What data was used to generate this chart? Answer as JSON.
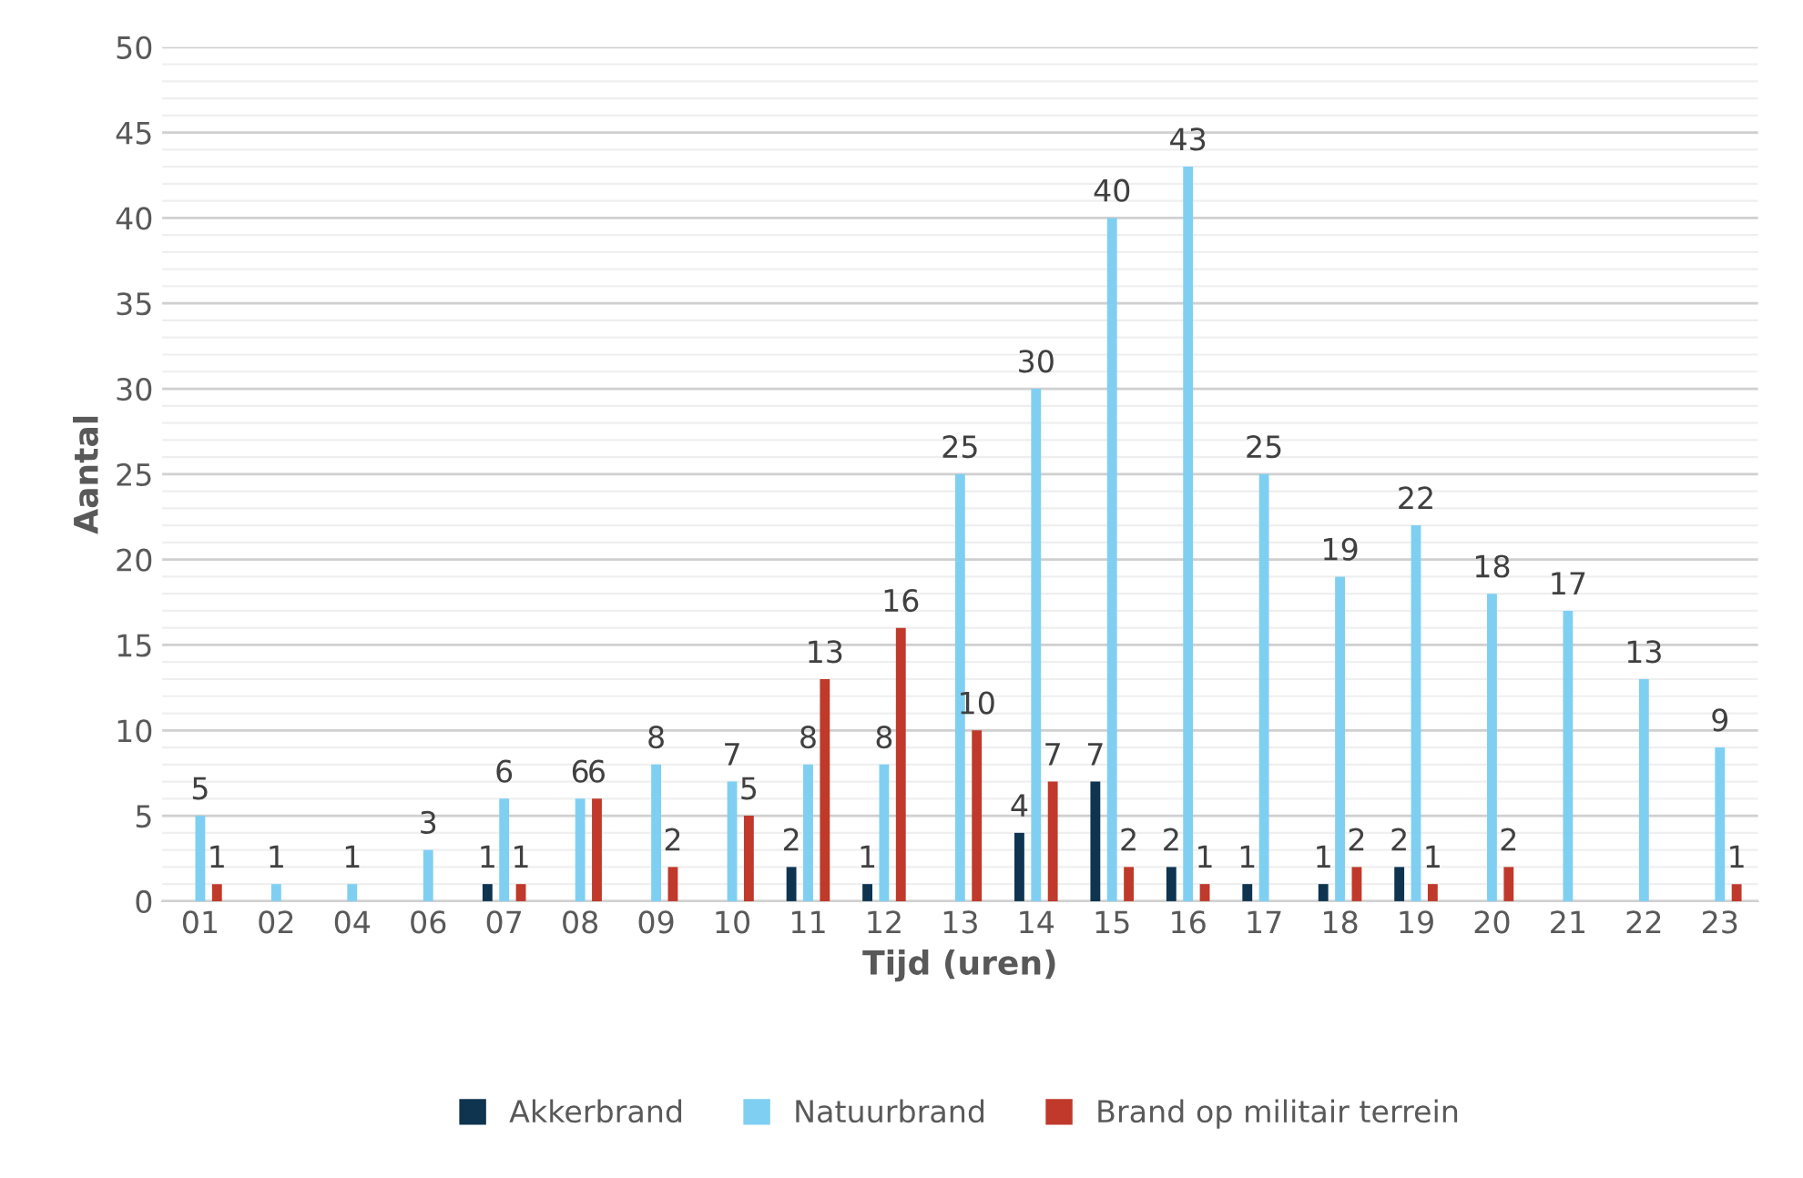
{
  "chart_data": {
    "type": "bar",
    "xlabel": "Tijd (uren)",
    "ylabel": "Aantal",
    "categories": [
      "01",
      "02",
      "04",
      "06",
      "07",
      "08",
      "09",
      "10",
      "11",
      "12",
      "13",
      "14",
      "15",
      "16",
      "17",
      "18",
      "19",
      "20",
      "21",
      "22",
      "23"
    ],
    "series": [
      {
        "name": "Akkerbrand",
        "color": "#0e3450",
        "values": [
          null,
          null,
          null,
          null,
          1,
          null,
          null,
          null,
          2,
          1,
          null,
          4,
          7,
          2,
          1,
          1,
          2,
          null,
          null,
          null,
          null
        ]
      },
      {
        "name": "Natuurbrand",
        "color": "#7fcff2",
        "values": [
          5,
          1,
          1,
          3,
          6,
          6,
          8,
          7,
          8,
          8,
          25,
          30,
          40,
          43,
          25,
          19,
          22,
          18,
          17,
          13,
          9
        ]
      },
      {
        "name": "Brand op militair terrein",
        "color": "#c0392b",
        "values": [
          1,
          null,
          null,
          null,
          1,
          6,
          2,
          5,
          13,
          16,
          10,
          7,
          2,
          1,
          null,
          2,
          1,
          2,
          null,
          null,
          1
        ]
      }
    ],
    "ylim": [
      0,
      50
    ],
    "yticks": [
      0,
      5,
      10,
      15,
      20,
      25,
      30,
      35,
      40,
      45,
      50
    ],
    "grid": "y",
    "legend": "bottom",
    "data_labels": true
  }
}
